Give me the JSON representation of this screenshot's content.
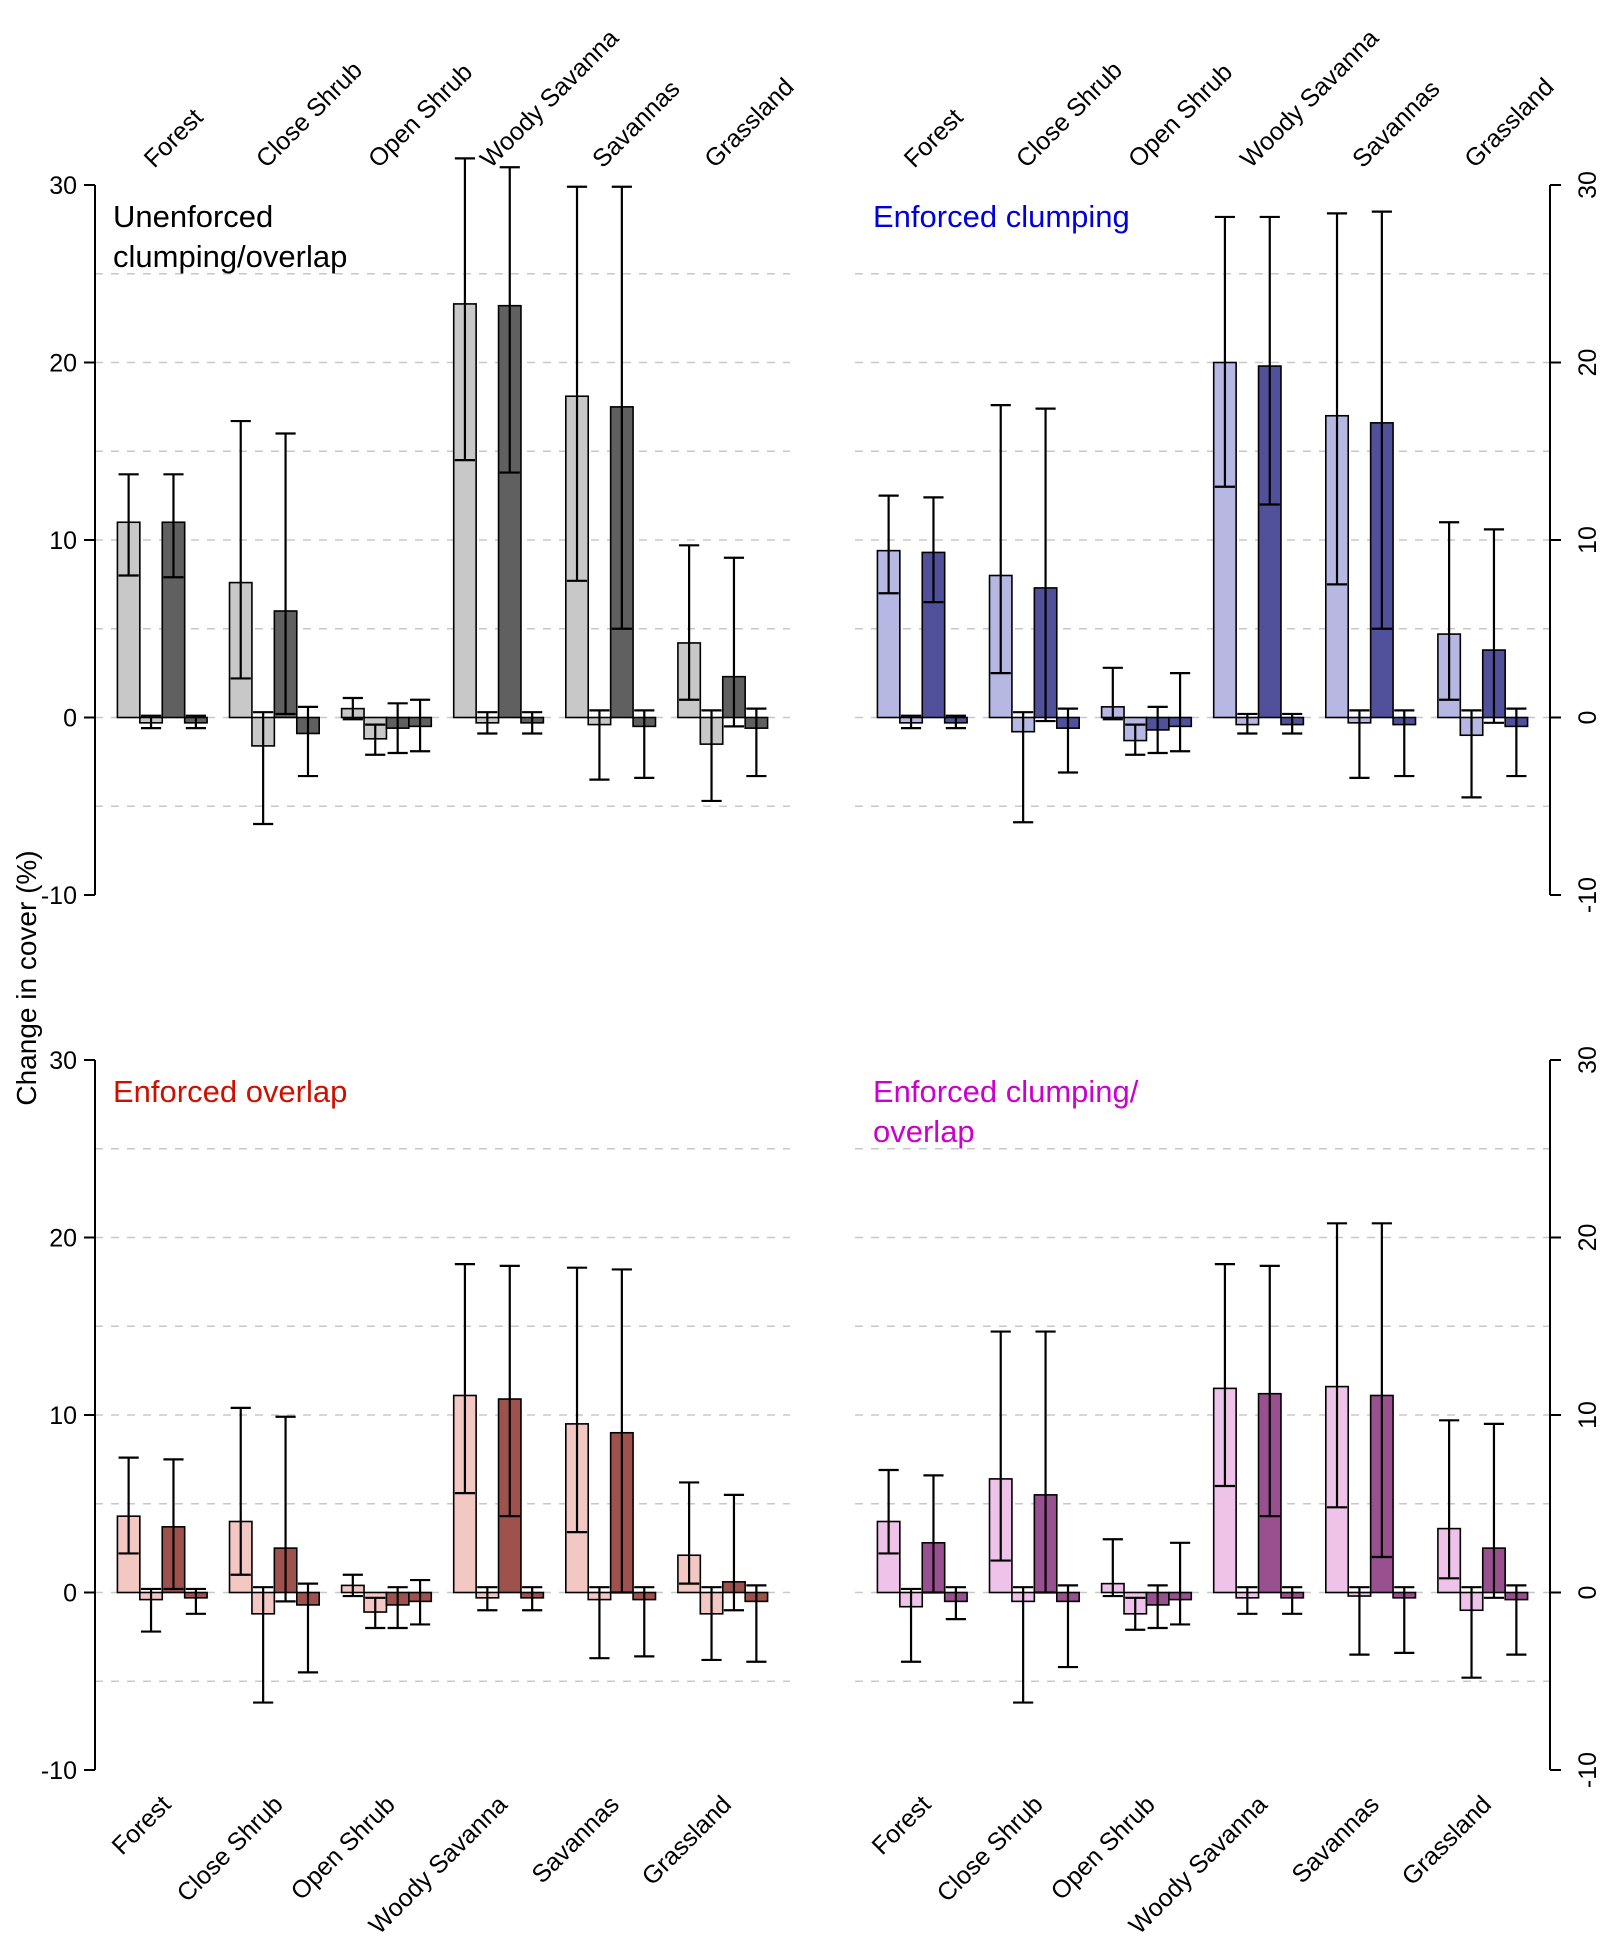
{
  "chart_data": {
    "type": "bar",
    "ylabel": "Change in cover (%)",
    "ylim": [
      -10,
      30
    ],
    "yticks": [
      30,
      20,
      10,
      0,
      -10
    ],
    "gridlines_y": [
      -5,
      0,
      5,
      10,
      15,
      20,
      25
    ],
    "grid_style": "dashed",
    "grid_color": "#c8c8c8",
    "categories": [
      "Forest",
      "Close Shrub",
      "Open Shrub",
      "Woody Savanna",
      "Savannas",
      "Grassland"
    ],
    "bars_per_group": 4,
    "bar_format": "[mean, err_low, err_high]",
    "panels": [
      {
        "id": "unenforced-clumping-overlap",
        "title": "Unenforced clumping/overlap",
        "title_lines": [
          "Unenforced",
          "clumping/overlap"
        ],
        "title_color": "#000000",
        "bar_colors": [
          "#c8c8c8",
          "#c8c8c8",
          "#606060",
          "#606060"
        ],
        "axis_side": "left",
        "category_labels": "top",
        "groups": [
          {
            "category": "Forest",
            "bars": [
              [
                11.0,
                8.0,
                13.7
              ],
              [
                -0.3,
                -0.6,
                0.1
              ],
              [
                11.0,
                7.9,
                13.7
              ],
              [
                -0.3,
                -0.6,
                0.1
              ]
            ]
          },
          {
            "category": "Close Shrub",
            "bars": [
              [
                7.6,
                2.2,
                16.7
              ],
              [
                -1.6,
                -6.0,
                0.3
              ],
              [
                6.0,
                0.2,
                16.0
              ],
              [
                -0.9,
                -3.3,
                0.6
              ]
            ]
          },
          {
            "category": "Open Shrub",
            "bars": [
              [
                0.5,
                -0.1,
                1.1
              ],
              [
                -1.2,
                -2.1,
                -0.4
              ],
              [
                -0.6,
                -2.0,
                0.8
              ],
              [
                -0.5,
                -1.9,
                1.0
              ]
            ]
          },
          {
            "category": "Woody Savanna",
            "bars": [
              [
                23.3,
                14.5,
                31.5
              ],
              [
                -0.3,
                -0.9,
                0.3
              ],
              [
                23.2,
                13.8,
                31.0
              ],
              [
                -0.3,
                -0.9,
                0.3
              ]
            ]
          },
          {
            "category": "Savannas",
            "bars": [
              [
                18.1,
                7.7,
                29.9
              ],
              [
                -0.4,
                -3.5,
                0.4
              ],
              [
                17.5,
                5.0,
                29.9
              ],
              [
                -0.5,
                -3.4,
                0.4
              ]
            ]
          },
          {
            "category": "Grassland",
            "bars": [
              [
                4.2,
                1.0,
                9.7
              ],
              [
                -1.5,
                -4.7,
                0.4
              ],
              [
                2.3,
                -0.5,
                9.0
              ],
              [
                -0.6,
                -3.3,
                0.5
              ]
            ]
          }
        ]
      },
      {
        "id": "enforced-clumping",
        "title": "Enforced clumping",
        "title_lines": [
          "Enforced clumping"
        ],
        "title_color": "#0000dd",
        "bar_colors": [
          "#b7b7e4",
          "#b7b7e4",
          "#50509b",
          "#50509b"
        ],
        "axis_side": "right",
        "category_labels": "top",
        "groups": [
          {
            "category": "Forest",
            "bars": [
              [
                9.4,
                7.0,
                12.5
              ],
              [
                -0.3,
                -0.6,
                0.1
              ],
              [
                9.3,
                6.5,
                12.4
              ],
              [
                -0.3,
                -0.6,
                0.1
              ]
            ]
          },
          {
            "category": "Close Shrub",
            "bars": [
              [
                8.0,
                2.5,
                17.6
              ],
              [
                -0.8,
                -5.9,
                0.3
              ],
              [
                7.3,
                -0.2,
                17.4
              ],
              [
                -0.6,
                -3.1,
                0.5
              ]
            ]
          },
          {
            "category": "Open Shrub",
            "bars": [
              [
                0.6,
                -0.1,
                2.8
              ],
              [
                -1.3,
                -2.1,
                -0.4
              ],
              [
                -0.7,
                -2.0,
                0.6
              ],
              [
                -0.5,
                -1.9,
                2.5
              ]
            ]
          },
          {
            "category": "Woody Savanna",
            "bars": [
              [
                20.0,
                13.0,
                28.2
              ],
              [
                -0.4,
                -0.9,
                0.2
              ],
              [
                19.8,
                12.0,
                28.2
              ],
              [
                -0.4,
                -0.9,
                0.2
              ]
            ]
          },
          {
            "category": "Savannas",
            "bars": [
              [
                17.0,
                7.5,
                28.4
              ],
              [
                -0.3,
                -3.4,
                0.4
              ],
              [
                16.6,
                5.0,
                28.5
              ],
              [
                -0.4,
                -3.3,
                0.4
              ]
            ]
          },
          {
            "category": "Grassland",
            "bars": [
              [
                4.7,
                1.0,
                11.0
              ],
              [
                -1.0,
                -4.5,
                0.4
              ],
              [
                3.8,
                -0.3,
                10.6
              ],
              [
                -0.5,
                -3.3,
                0.5
              ]
            ]
          }
        ]
      },
      {
        "id": "enforced-overlap",
        "title": "Enforced overlap",
        "title_lines": [
          "Enforced overlap"
        ],
        "title_color": "#cc1100",
        "bar_colors": [
          "#f3c7c2",
          "#f3c7c2",
          "#9e524e",
          "#9e524e"
        ],
        "axis_side": "left",
        "category_labels": "bottom",
        "groups": [
          {
            "category": "Forest",
            "bars": [
              [
                4.3,
                2.2,
                7.6
              ],
              [
                -0.4,
                -2.2,
                0.2
              ],
              [
                3.7,
                0.2,
                7.5
              ],
              [
                -0.3,
                -1.2,
                0.2
              ]
            ]
          },
          {
            "category": "Close Shrub",
            "bars": [
              [
                4.0,
                1.0,
                10.4
              ],
              [
                -1.2,
                -6.2,
                0.3
              ],
              [
                2.5,
                -0.5,
                9.9
              ],
              [
                -0.7,
                -4.5,
                0.5
              ]
            ]
          },
          {
            "category": "Open Shrub",
            "bars": [
              [
                0.4,
                -0.2,
                1.0
              ],
              [
                -1.1,
                -2.0,
                -0.3
              ],
              [
                -0.7,
                -2.0,
                0.3
              ],
              [
                -0.5,
                -1.8,
                0.7
              ]
            ]
          },
          {
            "category": "Woody Savanna",
            "bars": [
              [
                11.1,
                5.6,
                18.5
              ],
              [
                -0.3,
                -1.0,
                0.3
              ],
              [
                10.9,
                4.3,
                18.4
              ],
              [
                -0.3,
                -1.0,
                0.3
              ]
            ]
          },
          {
            "category": "Savannas",
            "bars": [
              [
                9.5,
                3.4,
                18.3
              ],
              [
                -0.4,
                -3.7,
                0.3
              ],
              [
                9.0,
                0.0,
                18.2
              ],
              [
                -0.4,
                -3.6,
                0.3
              ]
            ]
          },
          {
            "category": "Grassland",
            "bars": [
              [
                2.1,
                0.5,
                6.2
              ],
              [
                -1.2,
                -3.8,
                0.3
              ],
              [
                0.6,
                -1.0,
                5.5
              ],
              [
                -0.5,
                -3.9,
                0.4
              ]
            ]
          }
        ]
      },
      {
        "id": "enforced-clumping-overlap",
        "title": "Enforced clumping/ overlap",
        "title_lines": [
          "Enforced clumping/",
          " overlap"
        ],
        "title_color": "#cc00cc",
        "bar_colors": [
          "#efc3e9",
          "#efc3e9",
          "#99508f",
          "#99508f"
        ],
        "axis_side": "right",
        "category_labels": "bottom",
        "groups": [
          {
            "category": "Forest",
            "bars": [
              [
                4.0,
                2.2,
                6.9
              ],
              [
                -0.8,
                -3.9,
                0.2
              ],
              [
                2.8,
                0.0,
                6.6
              ],
              [
                -0.5,
                -1.5,
                0.3
              ]
            ]
          },
          {
            "category": "Close Shrub",
            "bars": [
              [
                6.4,
                1.8,
                14.7
              ],
              [
                -0.5,
                -6.2,
                0.3
              ],
              [
                5.5,
                0.0,
                14.7
              ],
              [
                -0.5,
                -4.2,
                0.4
              ]
            ]
          },
          {
            "category": "Open Shrub",
            "bars": [
              [
                0.5,
                -0.2,
                3.0
              ],
              [
                -1.2,
                -2.1,
                -0.3
              ],
              [
                -0.7,
                -2.0,
                0.4
              ],
              [
                -0.4,
                -1.8,
                2.8
              ]
            ]
          },
          {
            "category": "Woody Savanna",
            "bars": [
              [
                11.5,
                6.0,
                18.5
              ],
              [
                -0.3,
                -1.2,
                0.3
              ],
              [
                11.2,
                4.3,
                18.4
              ],
              [
                -0.3,
                -1.2,
                0.3
              ]
            ]
          },
          {
            "category": "Savannas",
            "bars": [
              [
                11.6,
                4.8,
                20.8
              ],
              [
                -0.2,
                -3.5,
                0.3
              ],
              [
                11.1,
                2.0,
                20.8
              ],
              [
                -0.3,
                -3.4,
                0.3
              ]
            ]
          },
          {
            "category": "Grassland",
            "bars": [
              [
                3.6,
                0.8,
                9.7
              ],
              [
                -1.0,
                -4.8,
                0.3
              ],
              [
                2.5,
                -0.3,
                9.5
              ],
              [
                -0.4,
                -3.5,
                0.4
              ]
            ]
          }
        ]
      }
    ]
  }
}
